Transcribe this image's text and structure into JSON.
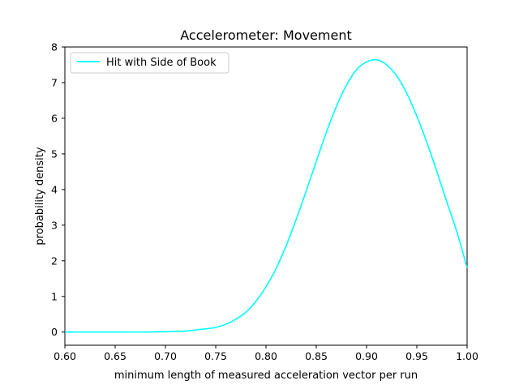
{
  "chart_data": {
    "type": "line",
    "title": "Accelerometer: Movement",
    "xlabel": "minimum length of measured acceleration vector per run",
    "ylabel": "probability density",
    "xlim": [
      0.6,
      1.0
    ],
    "ylim": [
      -0.37,
      8.0
    ],
    "xticks": [
      "0.60",
      "0.65",
      "0.70",
      "0.75",
      "0.80",
      "0.85",
      "0.90",
      "0.95",
      "1.00"
    ],
    "yticks": [
      "0",
      "1",
      "2",
      "3",
      "4",
      "5",
      "6",
      "7",
      "8"
    ],
    "grid": false,
    "legend_position": "upper-left",
    "series": [
      {
        "name": "Hit with Side of Book",
        "color": "#00ffff",
        "x": [
          0.6,
          0.62,
          0.64,
          0.66,
          0.68,
          0.7,
          0.72,
          0.74,
          0.75,
          0.76,
          0.77,
          0.78,
          0.79,
          0.8,
          0.81,
          0.82,
          0.83,
          0.84,
          0.85,
          0.86,
          0.87,
          0.88,
          0.89,
          0.9,
          0.91,
          0.92,
          0.93,
          0.94,
          0.95,
          0.96,
          0.97,
          0.98,
          0.99,
          1.0
        ],
        "y": [
          0.0,
          0.0,
          0.0,
          0.0,
          0.0,
          0.01,
          0.03,
          0.09,
          0.13,
          0.22,
          0.36,
          0.56,
          0.86,
          1.27,
          1.78,
          2.42,
          3.16,
          3.96,
          4.79,
          5.6,
          6.33,
          6.93,
          7.36,
          7.58,
          7.64,
          7.5,
          7.19,
          6.7,
          6.06,
          5.32,
          4.5,
          3.64,
          2.8,
          1.8
        ]
      }
    ]
  }
}
